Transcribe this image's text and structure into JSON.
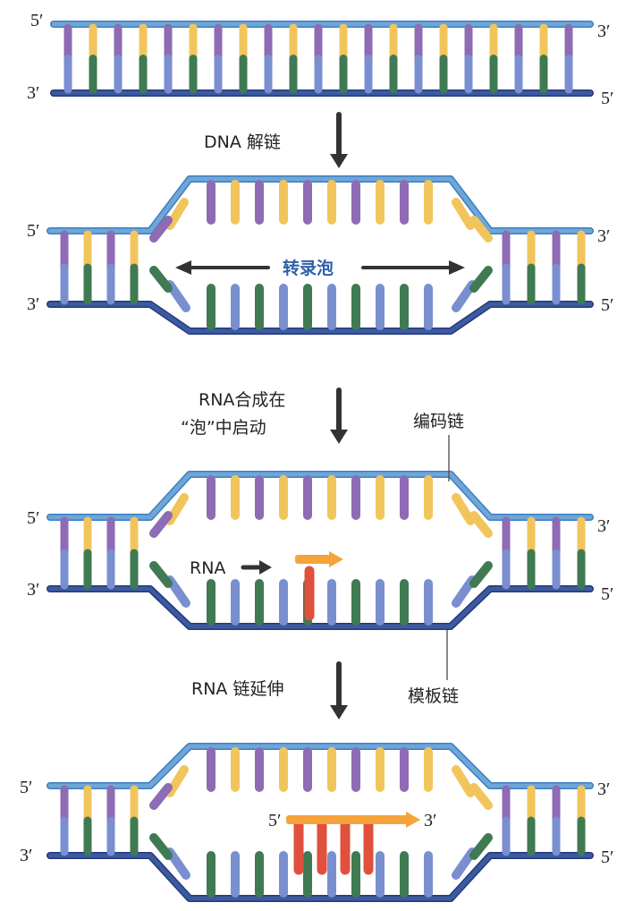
{
  "colors": {
    "top_strand": "#6fa6d6",
    "bottom_strand": "#3c5aa0",
    "purple": "#8e6bb4",
    "yellow": "#f2c55c",
    "green": "#3f7a52",
    "blue": "#7a8fd0",
    "rna": "#e0503c",
    "rna_arrow": "#f5a33a",
    "arrow": "#333333",
    "bubble_label": "#2f5fa8"
  },
  "labels": {
    "five_prime": "5′",
    "three_prime": "3′",
    "step1": "DNA 解链",
    "transcription_bubble": "转录泡",
    "step2_line1": "RNA合成在",
    "step2_line2": "“泡”中启动",
    "coding_strand": "编码链",
    "rna": "RNA",
    "template_strand": "模板链",
    "step3": "RNA 链延伸"
  },
  "icons": {
    "down_arrow": "down-arrow-icon",
    "double_arrow": "double-arrow-icon",
    "right_arrow": "right-arrow-icon"
  }
}
